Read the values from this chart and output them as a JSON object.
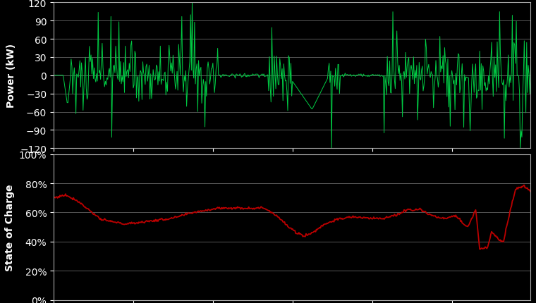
{
  "background_color": "#000000",
  "plot_bg_color": "#000000",
  "grid_color": "#666666",
  "power_line_color": "#00CC44",
  "soc_line_color": "#BB0000",
  "power_ylabel": "Power (kW)",
  "soc_ylabel": "State of Charge",
  "power_ylim": [
    -120,
    120
  ],
  "power_yticks": [
    -120,
    -90,
    -60,
    -30,
    0,
    30,
    60,
    90,
    120
  ],
  "soc_ylim": [
    0,
    1.0
  ],
  "soc_yticks": [
    0.0,
    0.2,
    0.4,
    0.6,
    0.8,
    1.0
  ],
  "n_points": 600,
  "label_color": "#FFFFFF",
  "tick_color": "#FFFFFF",
  "spine_color": "#AAAAAA",
  "tick_fontsize": 10,
  "label_fontsize": 10
}
